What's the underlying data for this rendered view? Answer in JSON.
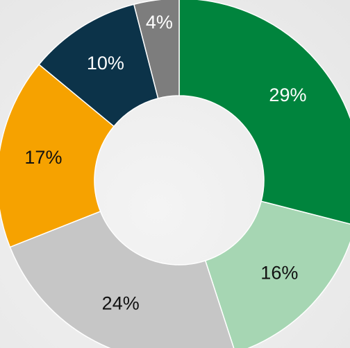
{
  "chart_data": {
    "type": "donut",
    "categories": [
      null,
      null,
      null,
      null,
      null,
      null
    ],
    "values": [
      29,
      16,
      24,
      17,
      10,
      4
    ],
    "value_labels": [
      "29%",
      "16%",
      "24%",
      "17%",
      "10%",
      "4%"
    ],
    "colors": [
      "#00843d",
      "#a6d6b3",
      "#c6c6c6",
      "#f6a200",
      "#0c3349",
      "#7d7d7d"
    ]
  }
}
